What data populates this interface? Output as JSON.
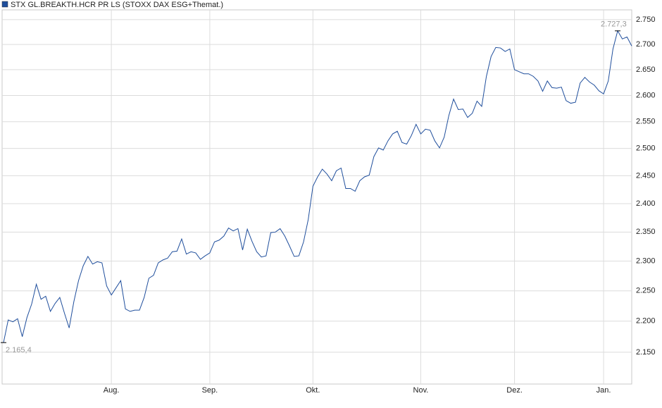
{
  "chart_data": {
    "type": "line",
    "series": [
      {
        "name": "STX GL.BREAKTH.HCR PR LS (STOXX DAX ESG+Themat.)",
        "color": "#1f4e9c",
        "values": [
          2165.4,
          2202,
          2199,
          2204,
          2175,
          2206,
          2228,
          2261,
          2236,
          2241,
          2216,
          2229,
          2239,
          2213,
          2189,
          2232,
          2267,
          2292,
          2308,
          2295,
          2299,
          2297,
          2258,
          2243,
          2255,
          2267,
          2220,
          2216,
          2218,
          2218,
          2239,
          2271,
          2276,
          2297,
          2302,
          2305,
          2316,
          2317,
          2338,
          2312,
          2316,
          2314,
          2303,
          2309,
          2314,
          2333,
          2336,
          2343,
          2357,
          2352,
          2356,
          2319,
          2355,
          2334,
          2316,
          2307,
          2309,
          2349,
          2350,
          2356,
          2343,
          2326,
          2308,
          2309,
          2333,
          2372,
          2431,
          2448,
          2462,
          2453,
          2441,
          2459,
          2464,
          2427,
          2427,
          2422,
          2441,
          2448,
          2451,
          2485,
          2501,
          2497,
          2514,
          2527,
          2532,
          2511,
          2508,
          2524,
          2545,
          2527,
          2536,
          2534,
          2514,
          2501,
          2521,
          2562,
          2593,
          2573,
          2574,
          2558,
          2566,
          2589,
          2579,
          2637,
          2676,
          2694,
          2693,
          2686,
          2691,
          2650,
          2646,
          2642,
          2642,
          2637,
          2628,
          2608,
          2628,
          2615,
          2614,
          2616,
          2590,
          2585,
          2587,
          2624,
          2635,
          2626,
          2620,
          2609,
          2603,
          2628,
          2691,
          2727.3,
          2711,
          2715,
          2697
        ]
      }
    ],
    "xlim": [
      0,
      134
    ],
    "xticks": [
      {
        "value": 23,
        "label": "Aug."
      },
      {
        "value": 44,
        "label": "Sep."
      },
      {
        "value": 66,
        "label": "Okt."
      },
      {
        "value": 89,
        "label": "Nov."
      },
      {
        "value": 109,
        "label": "Dez."
      },
      {
        "value": 128,
        "label": "Jan."
      }
    ],
    "ylim": [
      2100,
      2770
    ],
    "yscale": "log",
    "yticks": [
      {
        "value": 2150,
        "label": "2.150"
      },
      {
        "value": 2200,
        "label": "2.200"
      },
      {
        "value": 2250,
        "label": "2.250"
      },
      {
        "value": 2300,
        "label": "2.300"
      },
      {
        "value": 2350,
        "label": "2.350"
      },
      {
        "value": 2400,
        "label": "2.400"
      },
      {
        "value": 2450,
        "label": "2.450"
      },
      {
        "value": 2500,
        "label": "2.500"
      },
      {
        "value": 2550,
        "label": "2.550"
      },
      {
        "value": 2600,
        "label": "2.600"
      },
      {
        "value": 2650,
        "label": "2.650"
      },
      {
        "value": 2700,
        "label": "2.700"
      },
      {
        "value": 2750,
        "label": "2.750"
      }
    ],
    "grid": true,
    "annotations": [
      {
        "x": 0,
        "y": 2165.4,
        "label": "2.165,4"
      },
      {
        "x": 131,
        "y": 2727.3,
        "label": "2.727,3"
      }
    ]
  }
}
